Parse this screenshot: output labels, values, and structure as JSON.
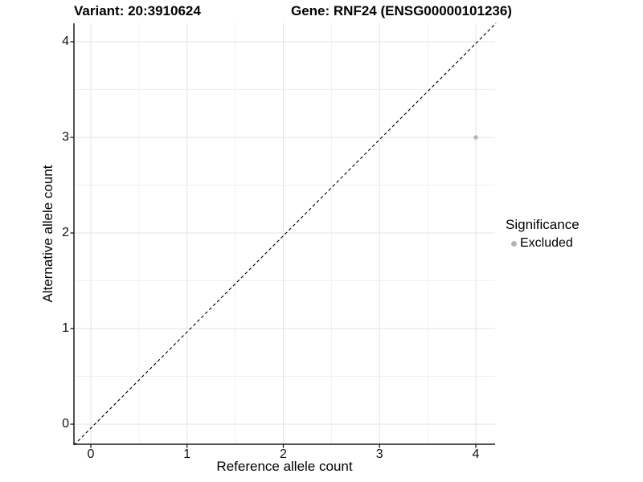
{
  "header": {
    "variant_title": "Variant: 20:3910624",
    "gene_title": "Gene: RNF24 (ENSG00000101236)"
  },
  "legend": {
    "title": "Significance",
    "items": [
      {
        "label": "Excluded",
        "color": "#b3b3b3"
      }
    ]
  },
  "chart_data": {
    "type": "scatter",
    "title": "Variant: 20:3910624   Gene: RNF24 (ENSG00000101236)",
    "xlabel": "Reference allele count",
    "ylabel": "Alternative allele count",
    "xticks": [
      0,
      1,
      2,
      3,
      4
    ],
    "yticks": [
      0,
      1,
      2,
      3,
      4
    ],
    "xlim": [
      -0.18,
      4.2
    ],
    "ylim": [
      -0.21,
      4.2
    ],
    "grid": "major and minor gridlines at 0.5 steps",
    "legend_position": "right",
    "series": [
      {
        "name": "Excluded",
        "color": "#b3b3b3",
        "points": [
          {
            "x": 4,
            "y": 3
          }
        ]
      }
    ],
    "reference_line": {
      "equation": "y = x",
      "style": "dashed",
      "color": "#000000"
    }
  },
  "colors": {
    "background": "#ffffff",
    "grid_major": "#e3e3e3",
    "grid_minor": "#f0f0f0",
    "axis_line": "#1a1a1a",
    "tick_text": "#111111",
    "point": "#b3b3b3"
  }
}
